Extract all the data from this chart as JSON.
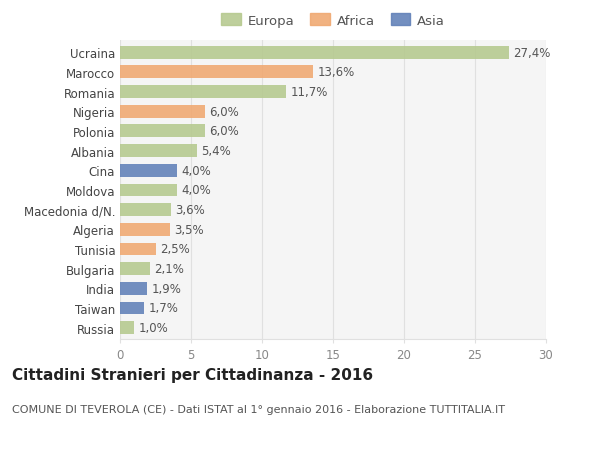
{
  "categories": [
    "Ucraina",
    "Marocco",
    "Romania",
    "Nigeria",
    "Polonia",
    "Albania",
    "Cina",
    "Moldova",
    "Macedonia d/N.",
    "Algeria",
    "Tunisia",
    "Bulgaria",
    "India",
    "Taiwan",
    "Russia"
  ],
  "values": [
    27.4,
    13.6,
    11.7,
    6.0,
    6.0,
    5.4,
    4.0,
    4.0,
    3.6,
    3.5,
    2.5,
    2.1,
    1.9,
    1.7,
    1.0
  ],
  "labels": [
    "27,4%",
    "13,6%",
    "11,7%",
    "6,0%",
    "6,0%",
    "5,4%",
    "4,0%",
    "4,0%",
    "3,6%",
    "3,5%",
    "2,5%",
    "2,1%",
    "1,9%",
    "1,7%",
    "1,0%"
  ],
  "continents": [
    "Europa",
    "Africa",
    "Europa",
    "Africa",
    "Europa",
    "Europa",
    "Asia",
    "Europa",
    "Europa",
    "Africa",
    "Africa",
    "Europa",
    "Asia",
    "Asia",
    "Europa"
  ],
  "colors": {
    "Europa": "#b5c98e",
    "Africa": "#f0a870",
    "Asia": "#6080b8"
  },
  "legend_labels": [
    "Europa",
    "Africa",
    "Asia"
  ],
  "legend_colors": [
    "#b5c98e",
    "#f0a870",
    "#6080b8"
  ],
  "title": "Cittadini Stranieri per Cittadinanza - 2016",
  "subtitle": "COMUNE DI TEVEROLA (CE) - Dati ISTAT al 1° gennaio 2016 - Elaborazione TUTTITALIA.IT",
  "xlim": [
    0,
    30
  ],
  "xticks": [
    0,
    5,
    10,
    15,
    20,
    25,
    30
  ],
  "background_color": "#ffffff",
  "plot_bg_color": "#f5f5f5",
  "grid_color": "#e0e0e0",
  "bar_height": 0.65,
  "title_fontsize": 11,
  "subtitle_fontsize": 8,
  "tick_fontsize": 8.5,
  "label_fontsize": 8.5,
  "legend_fontsize": 9.5
}
